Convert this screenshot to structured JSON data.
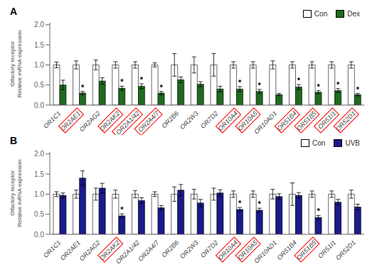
{
  "chart_data": [
    {
      "type": "bar",
      "title": "A",
      "ylabel": "Olfactory receptor\nRelative mRNA expression",
      "categories": [
        "OR1C1",
        "OR2AE1",
        "OR2AG2",
        "OR2AK2",
        "OR2A1/42",
        "OR2A4/7",
        "OR2B6",
        "OR2W3",
        "OR7D2",
        "OR10A4",
        "OR10A5",
        "OR10AD1",
        "OR51B4",
        "OR51B5",
        "OR51I1",
        "OR52D1"
      ],
      "series": [
        {
          "name": "Con",
          "color": "#ffffff",
          "values": [
            1.0,
            1.0,
            1.0,
            1.0,
            1.0,
            1.0,
            1.0,
            1.0,
            1.0,
            1.0,
            1.0,
            1.0,
            1.0,
            1.0,
            1.0,
            1.0
          ],
          "errors": [
            0.07,
            0.1,
            0.12,
            0.08,
            0.08,
            0.05,
            0.28,
            0.2,
            0.28,
            0.08,
            0.08,
            0.1,
            0.08,
            0.08,
            0.08,
            0.08
          ]
        },
        {
          "name": "Dex",
          "color": "#1e6b1e",
          "values": [
            0.5,
            0.3,
            0.6,
            0.42,
            0.47,
            0.3,
            0.63,
            0.52,
            0.4,
            0.4,
            0.34,
            0.26,
            0.45,
            0.32,
            0.36,
            0.26
          ],
          "errors": [
            0.12,
            0.04,
            0.08,
            0.05,
            0.06,
            0.04,
            0.07,
            0.06,
            0.07,
            0.06,
            0.05,
            0.03,
            0.06,
            0.04,
            0.05,
            0.03
          ]
        }
      ],
      "annotations": [
        {
          "category": "OR2AE1",
          "series": "Dex",
          "text": "*"
        },
        {
          "category": "OR2AK2",
          "series": "Dex",
          "text": "*"
        },
        {
          "category": "OR2A1/42",
          "series": "Dex",
          "text": "*"
        },
        {
          "category": "OR2A4/7",
          "series": "Dex",
          "text": "*"
        },
        {
          "category": "OR10A4",
          "series": "Dex",
          "text": "*"
        },
        {
          "category": "OR10A5",
          "series": "Dex",
          "text": "*"
        },
        {
          "category": "OR51B4",
          "series": "Dex",
          "text": "*"
        },
        {
          "category": "OR51B5",
          "series": "Dex",
          "text": "*"
        },
        {
          "category": "OR51I1",
          "series": "Dex",
          "text": "*"
        },
        {
          "category": "OR52D1",
          "series": "Dex",
          "text": "*"
        }
      ],
      "highlighted": [
        "OR2AE1",
        "OR2AK2",
        "OR2A1/42",
        "OR2A4/7",
        "OR10A4",
        "OR10A5",
        "OR51B4",
        "OR51B5",
        "OR51I1",
        "OR52D1"
      ],
      "highlight_color": "#ff0000",
      "ylim": [
        0,
        2.05
      ],
      "yticks": [
        {
          "value": 0,
          "label": "0.0"
        },
        0.5,
        {
          "value": 1,
          "label": "1.0"
        },
        1.5,
        {
          "value": 2,
          "label": "2.0"
        }
      ],
      "legend": "upper right"
    },
    {
      "type": "bar",
      "title": "B",
      "ylabel": "Olfactory receptor\nRelative mRNA expression",
      "categories": [
        "OR1C1",
        "OR2AE1",
        "OR2AG2",
        "OR2AK2",
        "OR2A1/42",
        "OR2A4/7",
        "OR2B6",
        "OR2W3",
        "OR7D2",
        "OR10A4",
        "OR10A5",
        "OR10AD1",
        "OR51B4",
        "OR51B5",
        "OR51I1",
        "OR52D1"
      ],
      "series": [
        {
          "name": "Con",
          "color": "#ffffff",
          "values": [
            1.0,
            1.0,
            1.0,
            1.0,
            1.0,
            1.0,
            1.0,
            1.0,
            1.0,
            1.0,
            1.0,
            1.0,
            1.0,
            1.0,
            1.0,
            1.0
          ],
          "errors": [
            0.06,
            0.1,
            0.15,
            0.1,
            0.09,
            0.06,
            0.18,
            0.12,
            0.15,
            0.08,
            0.08,
            0.12,
            0.28,
            0.08,
            0.08,
            0.1
          ]
        },
        {
          "name": "UVB",
          "color": "#1a1a8c",
          "values": [
            0.97,
            1.4,
            1.15,
            0.46,
            0.84,
            0.66,
            1.1,
            0.78,
            1.03,
            0.62,
            0.6,
            0.94,
            0.97,
            0.42,
            0.8,
            0.68
          ],
          "errors": [
            0.06,
            0.18,
            0.12,
            0.05,
            0.07,
            0.06,
            0.14,
            0.09,
            0.08,
            0.05,
            0.05,
            0.07,
            0.07,
            0.05,
            0.07,
            0.07
          ]
        }
      ],
      "annotations": [
        {
          "category": "OR2AK2",
          "series": "UVB",
          "text": "*"
        },
        {
          "category": "OR10A4",
          "series": "UVB",
          "text": "*"
        },
        {
          "category": "OR10A5",
          "series": "UVB",
          "text": "*"
        },
        {
          "category": "OR51B5",
          "series": "UVB",
          "text": "*"
        }
      ],
      "highlighted": [
        "OR2AK2",
        "OR10A4",
        "OR10A5",
        "OR51B5"
      ],
      "highlight_color": "#ff0000",
      "ylim": [
        0,
        2.05
      ],
      "yticks": [
        {
          "value": 0,
          "label": "0.0"
        },
        0.5,
        {
          "value": 1,
          "label": "1.0"
        },
        1.5,
        {
          "value": 2,
          "label": "2.0"
        }
      ],
      "legend": "upper right"
    }
  ]
}
